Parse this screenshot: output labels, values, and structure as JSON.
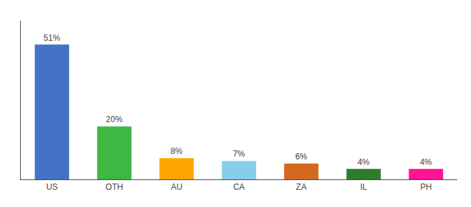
{
  "chart_data": {
    "type": "bar",
    "categories": [
      "US",
      "OTH",
      "AU",
      "CA",
      "ZA",
      "IL",
      "PH"
    ],
    "values": [
      51,
      20,
      8,
      7,
      6,
      4,
      4
    ],
    "value_labels": [
      "51%",
      "20%",
      "8%",
      "7%",
      "6%",
      "4%",
      "4%"
    ],
    "data_labels": true,
    "colors": [
      "#4472C4",
      "#3CB843",
      "#FFA500",
      "#87CEEB",
      "#D2691E",
      "#2D7D2D",
      "#FF1493"
    ],
    "ylim": [
      0,
      60
    ],
    "grid": false,
    "tick_labels": "x"
  }
}
